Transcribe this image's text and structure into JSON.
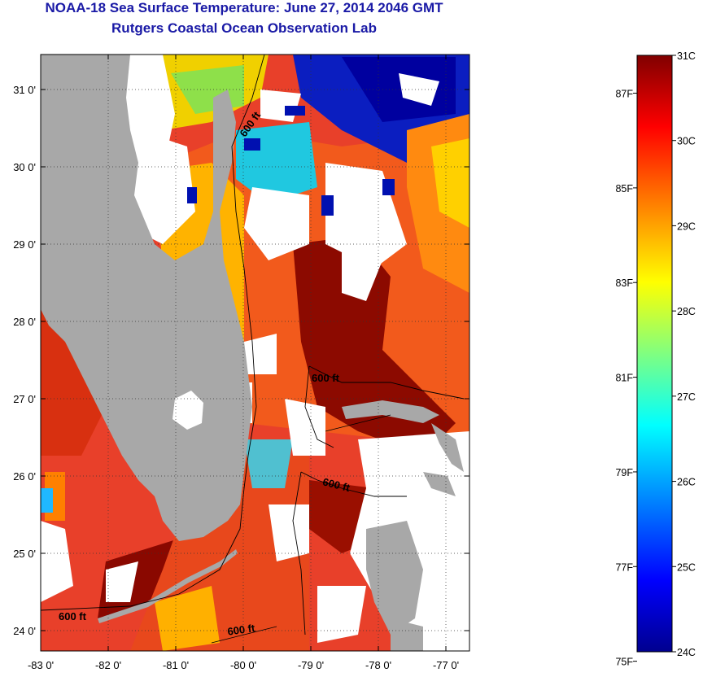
{
  "title": "NOAA-18 Sea Surface Temperature:  June 27, 2014 2046 GMT",
  "subtitle": "Rutgers Coastal Ocean Observation Lab",
  "axes": {
    "lat_labels": [
      "31 0'",
      "30 0'",
      "29 0'",
      "28 0'",
      "27 0'",
      "26 0'",
      "25 0'",
      "24 0'"
    ],
    "lon_labels": [
      "-83 0'",
      "-82 0'",
      "-81 0'",
      "-80 0'",
      "-79 0'",
      "-78 0'",
      "-77 0'"
    ]
  },
  "contours": [
    {
      "label": "600 ft"
    },
    {
      "label": "600 ft"
    },
    {
      "label": "600 ft"
    },
    {
      "label": "600 ft"
    },
    {
      "label": "600 ft"
    }
  ],
  "colorbar": {
    "celsius": [
      "31C",
      "30C",
      "29C",
      "28C",
      "27C",
      "26C",
      "25C",
      "24C"
    ],
    "fahrenheit": [
      "87F",
      "85F",
      "83F",
      "81F",
      "79F",
      "77F",
      "75F"
    ]
  },
  "colors": {
    "title": "#1a1aa6",
    "land": "#a9a9a9",
    "cloud": "#ffffff",
    "warm_dark": "#7a0000",
    "warm": "#d93a00",
    "mid": "#ff9a00",
    "cool": "#00d0ff",
    "cold": "#00009f"
  }
}
